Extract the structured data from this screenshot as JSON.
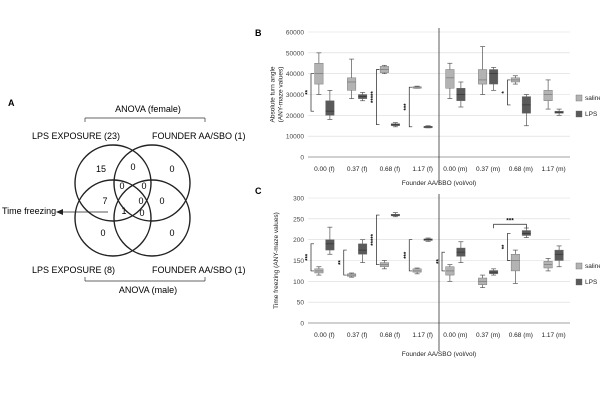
{
  "panel_a": {
    "label": "A",
    "anova_female": "ANOVA (female)",
    "anova_male": "ANOVA (male)",
    "set_top_left": "LPS EXPOSURE (23)",
    "set_top_right": "FOUNDER AA/SBO (1)",
    "set_bottom_left": "LPS EXPOSURE (8)",
    "set_bottom_right": "FOUNDER AA/SBO (1)",
    "time_freezing_label": "Time freezing",
    "counts": {
      "c15": "15",
      "c0_top_mid": "0",
      "c0_top_right": "0",
      "c7": "7",
      "c0_center_l": "0",
      "c0_center_r": "0",
      "c1": "1",
      "c0_mid_l": "0",
      "c0_mid_r": "0",
      "c0_mid_rr": "0",
      "c0_bot_l": "0",
      "c0_bot_r": "0"
    }
  },
  "chart_data": [
    {
      "panel": "B",
      "type": "box",
      "ylabel": "Absolute turn angle\n(ANY-maze values)",
      "xlabel": "Founder AA/SBO (vol/vol)",
      "ylim": [
        0,
        60000
      ],
      "yticks": [
        "0",
        "10000",
        "20000",
        "30000",
        "40000",
        "50000",
        "60000"
      ],
      "categories": [
        "0.00 (f)",
        "0.37 (f)",
        "0.68 (f)",
        "1.17 (f)",
        "0.00 (m)",
        "0.37 (m)",
        "0.68 (m)",
        "1.17 (m)"
      ],
      "legend": [
        "saline",
        "LPS"
      ],
      "legend_position": "right",
      "series": [
        {
          "name": "saline",
          "color": "#b3b3b3",
          "boxes": [
            {
              "min": 30000,
              "q1": 35000,
              "median": 40000,
              "q3": 45000,
              "max": 50000
            },
            {
              "min": 28000,
              "q1": 32000,
              "median": 36000,
              "q3": 38000,
              "max": 47000
            },
            {
              "min": 40000,
              "q1": 40500,
              "median": 42000,
              "q3": 43500,
              "max": 44000
            },
            {
              "min": 33000,
              "q1": 33300,
              "median": 33500,
              "q3": 33700,
              "max": 34000
            },
            {
              "min": 28000,
              "q1": 33000,
              "median": 38000,
              "q3": 42000,
              "max": 45000
            },
            {
              "min": 30000,
              "q1": 35000,
              "median": 37000,
              "q3": 42000,
              "max": 53000
            },
            {
              "min": 35000,
              "q1": 36000,
              "median": 37000,
              "q3": 38000,
              "max": 39000
            },
            {
              "min": 23000,
              "q1": 27000,
              "median": 30000,
              "q3": 32000,
              "max": 37000
            }
          ]
        },
        {
          "name": "LPS",
          "color": "#5a5a5a",
          "boxes": [
            {
              "min": 18000,
              "q1": 20000,
              "median": 22000,
              "q3": 27000,
              "max": 32000
            },
            {
              "min": 27000,
              "q1": 28000,
              "median": 29000,
              "q3": 30000,
              "max": 31000
            },
            {
              "min": 14500,
              "q1": 15000,
              "median": 15500,
              "q3": 16000,
              "max": 16500
            },
            {
              "min": 14000,
              "q1": 14300,
              "median": 14500,
              "q3": 14700,
              "max": 15000
            },
            {
              "min": 24000,
              "q1": 27000,
              "median": 30000,
              "q3": 33000,
              "max": 36000
            },
            {
              "min": 32000,
              "q1": 35000,
              "median": 40000,
              "q3": 42000,
              "max": 43000
            },
            {
              "min": 15000,
              "q1": 21000,
              "median": 25000,
              "q3": 29000,
              "max": 30000
            },
            {
              "min": 20000,
              "q1": 21000,
              "median": 21500,
              "q3": 22000,
              "max": 23000
            }
          ]
        }
      ],
      "significance": [
        {
          "category": "0.00 (f)",
          "stars": "**"
        },
        {
          "category": "0.68 (f)",
          "stars": "*****"
        },
        {
          "category": "1.17 (f)",
          "stars": "***"
        },
        {
          "category": "0.68 (m)",
          "stars": "*"
        }
      ]
    },
    {
      "panel": "C",
      "type": "box",
      "ylabel": "Time freezing (ANY-maze values)",
      "xlabel": "Founder AA/SBO (vol/vol)",
      "ylim": [
        0,
        300
      ],
      "yticks": [
        "0",
        "50",
        "100",
        "150",
        "200",
        "250",
        "300"
      ],
      "categories": [
        "0.00 (f)",
        "0.37 (f)",
        "0.68 (f)",
        "1.17 (f)",
        "0.00 (m)",
        "0.37 (m)",
        "0.68 (m)",
        "1.17 (m)"
      ],
      "legend": [
        "saline",
        "LPS"
      ],
      "legend_position": "right",
      "series": [
        {
          "name": "saline",
          "color": "#b3b3b3",
          "boxes": [
            {
              "min": 115,
              "q1": 120,
              "median": 125,
              "q3": 130,
              "max": 135
            },
            {
              "min": 110,
              "q1": 112,
              "median": 115,
              "q3": 118,
              "max": 120
            },
            {
              "min": 130,
              "q1": 135,
              "median": 140,
              "q3": 145,
              "max": 150
            },
            {
              "min": 118,
              "q1": 122,
              "median": 125,
              "q3": 130,
              "max": 132
            },
            {
              "min": 100,
              "q1": 115,
              "median": 125,
              "q3": 135,
              "max": 140
            },
            {
              "min": 85,
              "q1": 92,
              "median": 100,
              "q3": 108,
              "max": 115
            },
            {
              "min": 95,
              "q1": 125,
              "median": 150,
              "q3": 165,
              "max": 175
            },
            {
              "min": 125,
              "q1": 132,
              "median": 140,
              "q3": 148,
              "max": 155
            }
          ]
        },
        {
          "name": "LPS",
          "color": "#5a5a5a",
          "boxes": [
            {
              "min": 165,
              "q1": 175,
              "median": 190,
              "q3": 200,
              "max": 230
            },
            {
              "min": 145,
              "q1": 165,
              "median": 175,
              "q3": 190,
              "max": 200
            },
            {
              "min": 255,
              "q1": 257,
              "median": 259,
              "q3": 261,
              "max": 265
            },
            {
              "min": 196,
              "q1": 198,
              "median": 200,
              "q3": 202,
              "max": 204
            },
            {
              "min": 145,
              "q1": 160,
              "median": 170,
              "q3": 180,
              "max": 195
            },
            {
              "min": 115,
              "q1": 118,
              "median": 122,
              "q3": 126,
              "max": 130
            },
            {
              "min": 205,
              "q1": 210,
              "median": 215,
              "q3": 222,
              "max": 228
            },
            {
              "min": 135,
              "q1": 150,
              "median": 165,
              "q3": 175,
              "max": 185
            }
          ]
        }
      ],
      "significance": [
        {
          "category": "0.00 (f)",
          "stars": "***"
        },
        {
          "category": "0.37 (f)",
          "stars": "**"
        },
        {
          "category": "0.68 (f)",
          "stars": "*****"
        },
        {
          "category": "1.17 (f)",
          "stars": "***"
        },
        {
          "category": "0.00 (m)",
          "stars": "**"
        },
        {
          "category": "0.68 (m)",
          "stars": "**"
        },
        {
          "category": "0.37 (m) vs 0.68 (m) LPS",
          "stars": "***"
        }
      ]
    }
  ]
}
